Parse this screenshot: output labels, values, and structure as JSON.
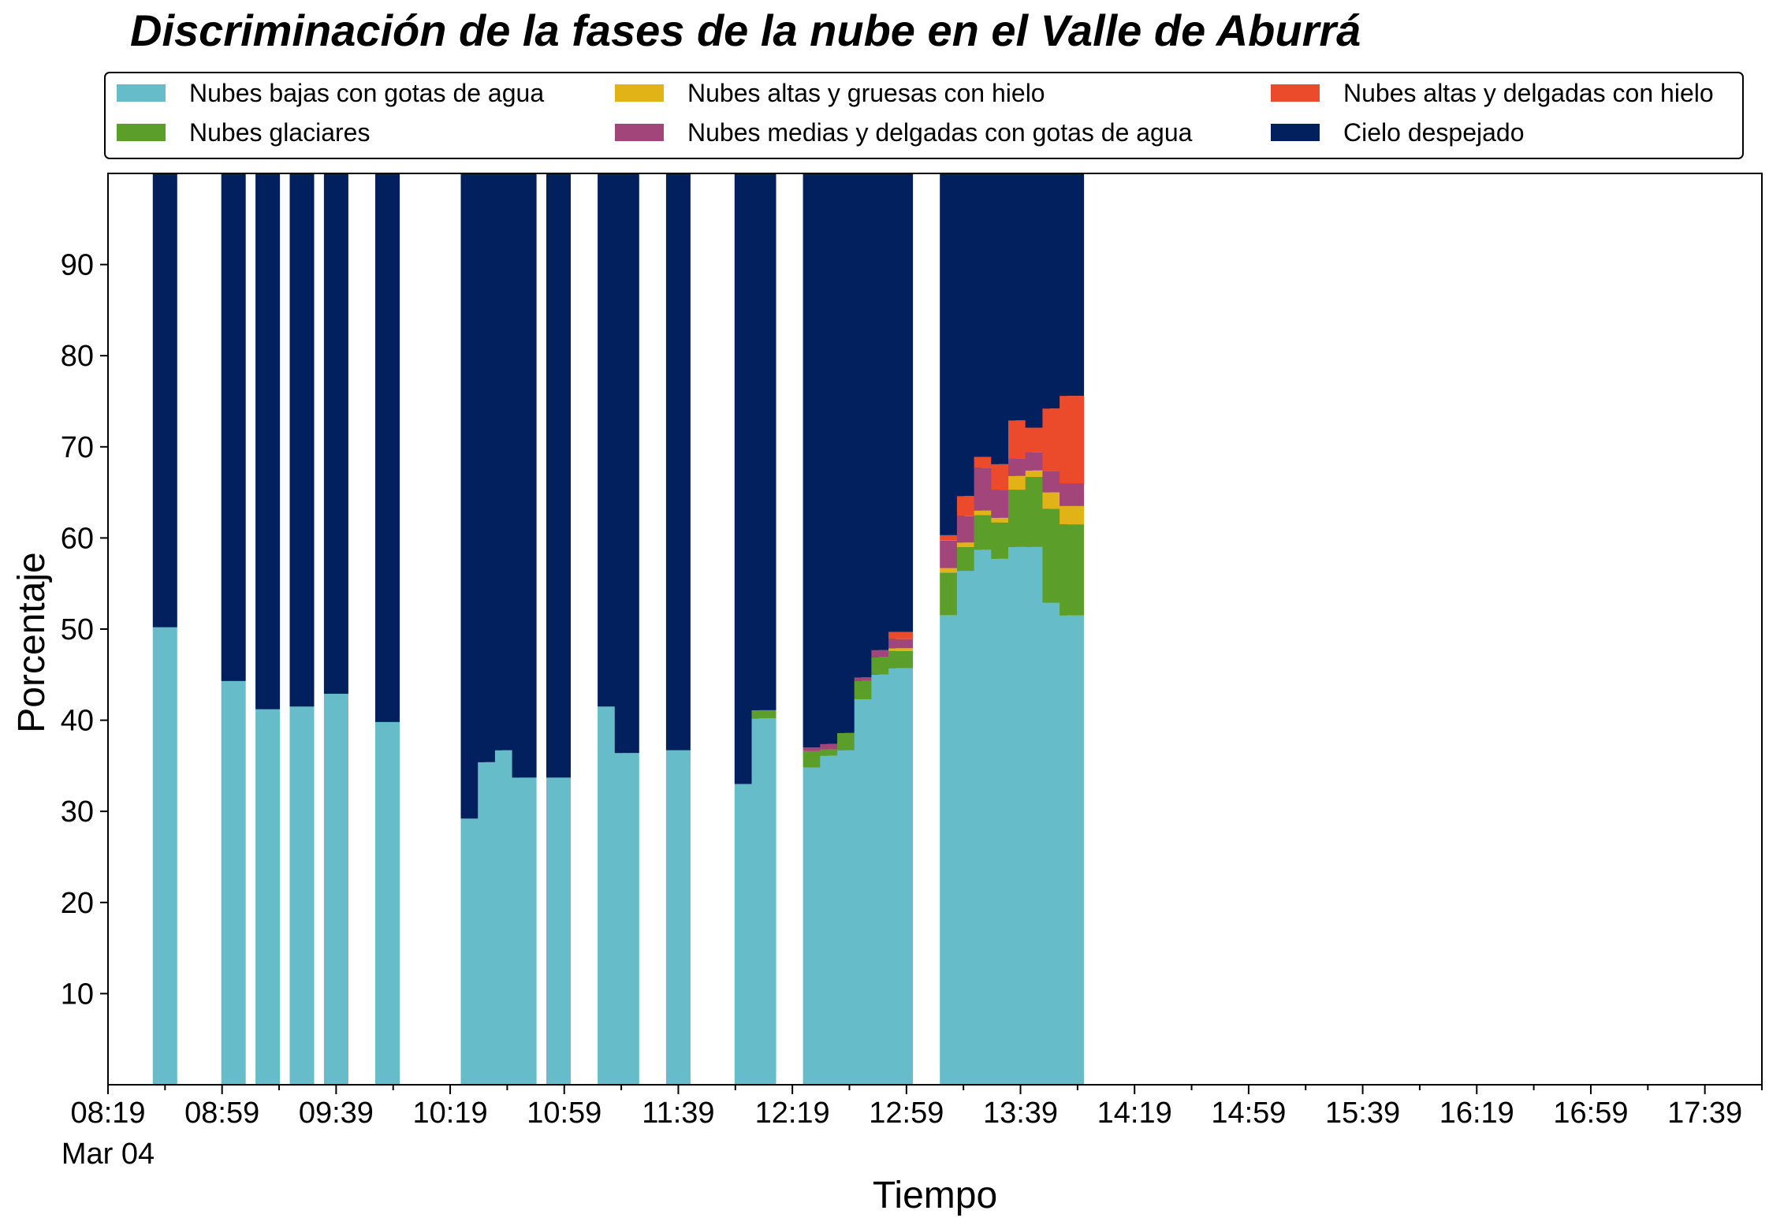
{
  "chart_data": {
    "type": "bar",
    "stacked": true,
    "title": "Discriminación de la fases de la nube en el Valle de Aburrá",
    "xlabel": "Tiempo",
    "ylabel": "Porcentaje",
    "ylim": [
      0,
      100
    ],
    "yticks": [
      10,
      20,
      30,
      40,
      50,
      60,
      70,
      80,
      90
    ],
    "xlim": [
      "08:19",
      "17:59"
    ],
    "xtick_labels": [
      "08:19",
      "08:59",
      "09:39",
      "10:19",
      "10:59",
      "11:39",
      "12:19",
      "12:59",
      "13:39",
      "14:19",
      "14:59",
      "15:39",
      "16:19",
      "16:59",
      "17:39"
    ],
    "date_label": "Mar 04",
    "grid": false,
    "legend_position": "top",
    "times": [
      "08:39",
      "09:03",
      "09:15",
      "09:27",
      "09:39",
      "09:57",
      "10:27",
      "10:33",
      "10:39",
      "10:45",
      "10:57",
      "11:15",
      "11:21",
      "11:39",
      "12:03",
      "12:09",
      "12:27",
      "12:33",
      "12:39",
      "12:45",
      "12:51",
      "12:57",
      "13:15",
      "13:21",
      "13:27",
      "13:33",
      "13:39",
      "13:45",
      "13:51",
      "13:57"
    ],
    "series": [
      {
        "name": "Nubes bajas con gotas de agua",
        "color": "#66BCC8",
        "values": [
          50.2,
          44.3,
          41.2,
          41.5,
          42.9,
          39.8,
          29.2,
          35.4,
          36.7,
          33.7,
          33.7,
          41.5,
          36.4,
          36.7,
          33.0,
          40.2,
          34.8,
          36.1,
          36.7,
          42.3,
          45.0,
          45.7,
          51.5,
          56.4,
          58.7,
          57.7,
          59.0,
          59.0,
          52.9,
          51.5
        ]
      },
      {
        "name": "Nubes glaciares",
        "color": "#5C9E2A",
        "values": [
          0,
          0,
          0,
          0,
          0,
          0,
          0,
          0,
          0,
          0,
          0,
          0,
          0,
          0,
          0,
          0.9,
          1.8,
          0.7,
          1.9,
          2.0,
          1.9,
          1.9,
          4.7,
          2.6,
          3.8,
          4.0,
          6.3,
          7.7,
          10.3,
          10.0
        ]
      },
      {
        "name": "Nubes altas y gruesas con hielo",
        "color": "#E2B317",
        "values": [
          0,
          0,
          0,
          0,
          0,
          0,
          0,
          0,
          0,
          0,
          0,
          0,
          0,
          0,
          0,
          0,
          0,
          0,
          0,
          0,
          0,
          0.3,
          0.5,
          0.5,
          0.5,
          0.5,
          1.5,
          0.7,
          1.8,
          2.0
        ]
      },
      {
        "name": "Nubes medias y delgadas con gotas de agua",
        "color": "#A2457A",
        "values": [
          0,
          0,
          0,
          0,
          0,
          0,
          0,
          0,
          0,
          0,
          0,
          0,
          0,
          0,
          0,
          0,
          0.4,
          0.6,
          0,
          0.4,
          0.8,
          1.0,
          3.0,
          2.9,
          4.7,
          3.1,
          1.9,
          2.0,
          2.3,
          2.5
        ]
      },
      {
        "name": "Nubes altas y delgadas con hielo",
        "color": "#EB4A2B",
        "values": [
          0,
          0,
          0,
          0,
          0,
          0,
          0,
          0,
          0,
          0,
          0,
          0,
          0,
          0,
          0,
          0,
          0,
          0,
          0,
          0,
          0,
          0.8,
          0.6,
          2.2,
          1.2,
          2.8,
          4.2,
          2.7,
          6.9,
          9.6
        ]
      },
      {
        "name": "Cielo despejado",
        "color": "#02205E",
        "values": [
          49.8,
          55.7,
          58.8,
          58.5,
          57.1,
          60.2,
          70.8,
          64.6,
          63.3,
          66.3,
          66.3,
          58.5,
          63.6,
          63.3,
          67.0,
          58.9,
          63.0,
          62.6,
          61.4,
          55.3,
          52.3,
          50.3,
          39.7,
          35.4,
          31.1,
          31.9,
          27.1,
          27.9,
          25.8,
          24.4
        ]
      }
    ]
  }
}
